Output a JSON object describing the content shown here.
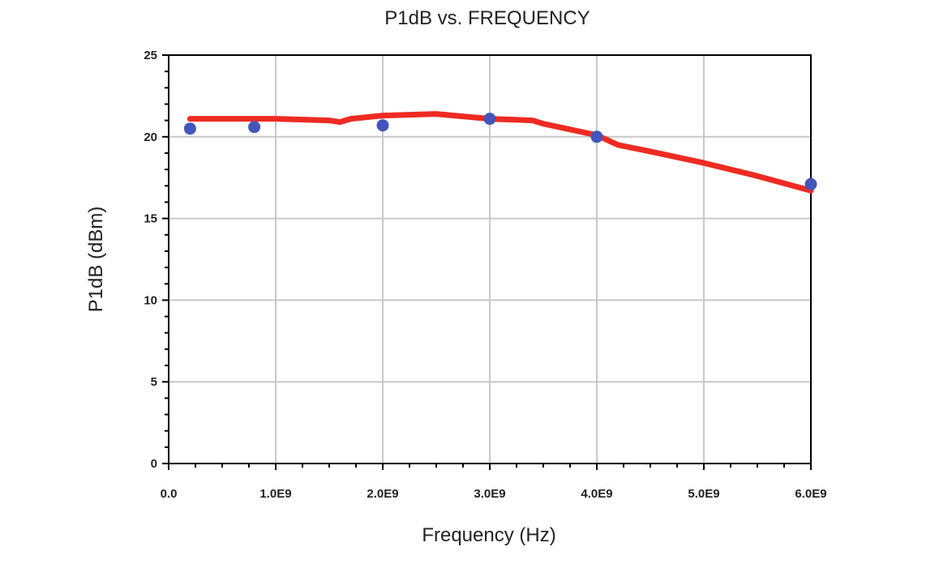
{
  "chart_data": {
    "type": "line",
    "title": "P1dB vs. FREQUENCY",
    "xlabel": "Frequency (Hz)",
    "ylabel": "P1dB (dBm)",
    "xlim": [
      0,
      6000000000
    ],
    "ylim": [
      0,
      25
    ],
    "x_ticks": [
      0,
      1000000000,
      2000000000,
      3000000000,
      4000000000,
      5000000000,
      6000000000
    ],
    "x_tick_labels": [
      "0.0",
      "1.0E9",
      "2.0E9",
      "3.0E9",
      "4.0E9",
      "5.0E9",
      "6.0E9"
    ],
    "y_ticks": [
      0,
      5,
      10,
      15,
      20,
      25
    ],
    "y_tick_labels": [
      "0",
      "5",
      "10",
      "15",
      "20",
      "25"
    ],
    "grid": true,
    "series": [
      {
        "kind": "line",
        "color": "#ee2b22",
        "x": [
          200000000,
          500000000,
          1000000000,
          1500000000,
          1600000000,
          1700000000,
          2000000000,
          2500000000,
          3000000000,
          3400000000,
          3500000000,
          4000000000,
          4200000000,
          4500000000,
          5000000000,
          5500000000,
          6000000000
        ],
        "y": [
          21.1,
          21.1,
          21.1,
          21.0,
          20.9,
          21.1,
          21.3,
          21.4,
          21.1,
          21.0,
          20.8,
          20.1,
          19.5,
          19.1,
          18.4,
          17.6,
          16.7
        ]
      },
      {
        "kind": "scatter",
        "color": "#4455bb",
        "x": [
          200000000,
          800000000,
          2000000000,
          3000000000,
          4000000000,
          6000000000
        ],
        "y": [
          20.5,
          20.6,
          20.7,
          21.1,
          20.0,
          17.1
        ]
      }
    ]
  },
  "colors": {
    "grid": "#c8c8c8",
    "axis": "#000000",
    "background": "#ffffff"
  }
}
